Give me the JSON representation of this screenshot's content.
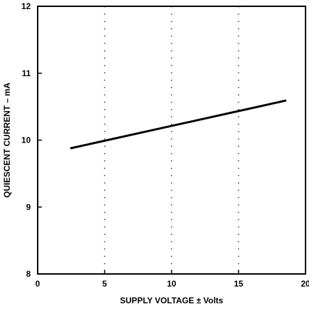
{
  "chart_data": {
    "type": "line",
    "title": "",
    "xlabel": "SUPPLY VOLTAGE ± Volts",
    "ylabel": "QUIESCENT CURRENT – mA",
    "xlim": [
      0,
      20
    ],
    "ylim": [
      8,
      12
    ],
    "x_ticks": [
      0,
      5,
      10,
      15,
      20
    ],
    "x_tick_labels": [
      "0",
      "5",
      "10",
      "15",
      "20"
    ],
    "y_ticks": [
      8,
      9,
      10,
      11,
      12
    ],
    "y_tick_labels": [
      "8",
      "9",
      "10",
      "11",
      "12"
    ],
    "grid": "dotted vertical lines at x = 5, 10, 15",
    "legend": "none",
    "series": [
      {
        "x": [
          2.5,
          18.5
        ],
        "y": [
          9.88,
          10.59
        ]
      }
    ],
    "colors": {
      "line": "#000000",
      "axes": "#000000",
      "background": "#ffffff"
    }
  }
}
